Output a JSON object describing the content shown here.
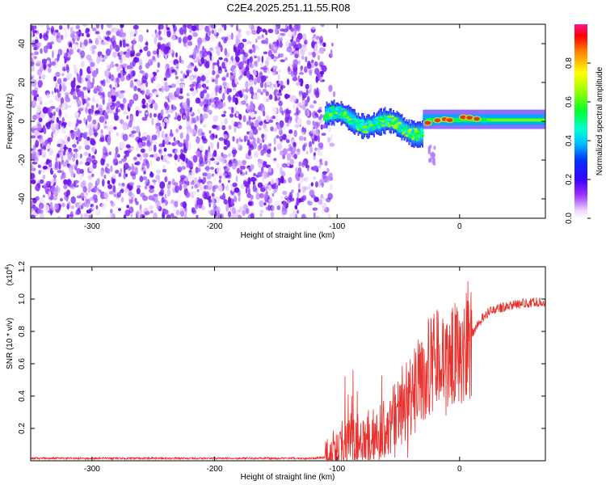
{
  "title": "C2E4.2025.251.11.55.R08",
  "colors": {
    "trace": "#e8302c",
    "cloud": "#8a2be2",
    "axis": "#000000"
  },
  "chart_data": [
    {
      "type": "heatmap",
      "title": "C2E4.2025.251.11.55.R08",
      "xlabel": "Height of straight line (km)",
      "ylabel": "Frequency (Hz)",
      "xlim": [
        -350,
        70
      ],
      "ylim": [
        -50,
        50
      ],
      "xticks": [
        -300,
        -200,
        -100,
        0
      ],
      "yticks": [
        -40,
        -20,
        0,
        20,
        40
      ],
      "colorbar": {
        "label": "Normalized spectral amplitude",
        "range": [
          0.0,
          1.0
        ],
        "ticks": [
          0.0,
          0.2,
          0.4,
          0.6,
          0.8
        ],
        "tick_labels": [
          "0.0",
          "0.2",
          "0.4",
          "0.6",
          "0.8"
        ]
      },
      "regions": [
        {
          "name": "noise",
          "x": [
            -350,
            -110
          ],
          "freq": [
            -50,
            50
          ],
          "amplitude": 0.15
        },
        {
          "name": "disturbed-band",
          "x": [
            -110,
            -30
          ],
          "freq": [
            -12,
            10
          ],
          "amplitude": 0.45
        },
        {
          "name": "tail-spot",
          "x": [
            -25,
            -20
          ],
          "freq": [
            -22,
            -12
          ],
          "amplitude": 0.12
        },
        {
          "name": "narrow-band",
          "x": [
            -30,
            70
          ],
          "freq": [
            -3,
            4
          ],
          "amplitude": 0.8
        }
      ]
    },
    {
      "type": "line",
      "xlabel": "Height of straight line (km)",
      "ylabel": "SNR (10 * v/v)",
      "scale_label": "(x10",
      "scale_exp": "4",
      "scale_close": ")",
      "xlim": [
        -350,
        70
      ],
      "ylim": [
        0,
        1.2
      ],
      "xticks": [
        -300,
        -200,
        -100,
        0
      ],
      "yticks": [
        0.2,
        0.4,
        0.6,
        0.8,
        1.0,
        1.2
      ],
      "ytick_labels": [
        "0.2",
        "0.4",
        "0.6",
        "0.8",
        "1.0",
        "1.2"
      ],
      "series": [
        {
          "name": "SNR",
          "x": [
            -350,
            -300,
            -250,
            -200,
            -150,
            -120,
            -110,
            -100,
            -90,
            -80,
            -70,
            -60,
            -50,
            -40,
            -30,
            -25,
            -20,
            -17,
            -15,
            -12,
            -10,
            -5,
            0,
            5,
            10,
            15,
            20,
            30,
            40,
            50,
            60,
            70
          ],
          "values": [
            0.015,
            0.015,
            0.015,
            0.015,
            0.015,
            0.015,
            0.02,
            0.04,
            0.1,
            0.14,
            0.16,
            0.2,
            0.3,
            0.42,
            0.5,
            0.58,
            0.65,
            0.7,
            0.6,
            0.6,
            0.6,
            0.65,
            0.7,
            0.75,
            0.78,
            0.84,
            0.9,
            0.94,
            0.96,
            0.97,
            0.98,
            0.98
          ]
        }
      ]
    }
  ]
}
